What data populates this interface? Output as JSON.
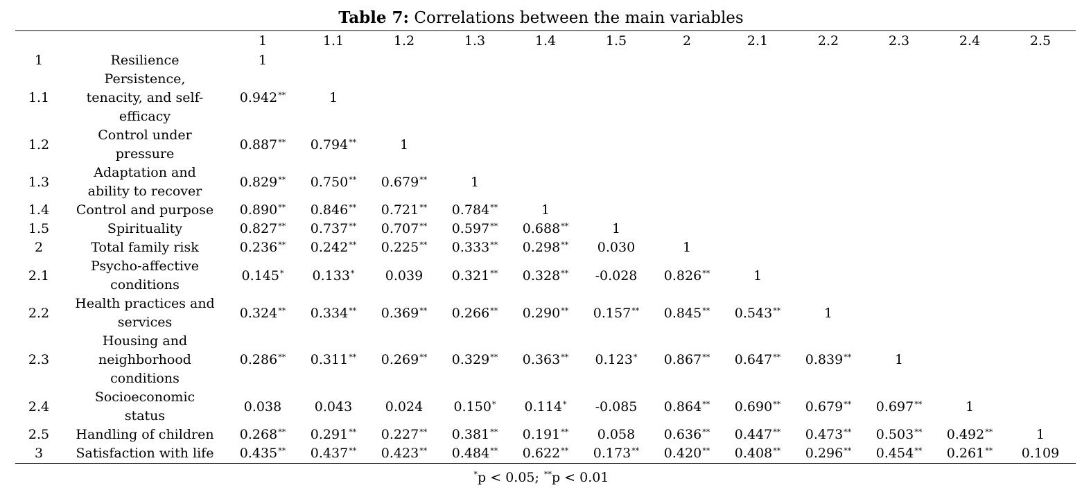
{
  "title": {
    "label": "Table 7:",
    "text": "Correlations between the main variables"
  },
  "columns": [
    "1",
    "1.1",
    "1.2",
    "1.3",
    "1.4",
    "1.5",
    "2",
    "2.1",
    "2.2",
    "2.3",
    "2.4",
    "2.5"
  ],
  "rows": [
    {
      "id": "1",
      "name": [
        "Resilience"
      ],
      "cells": [
        "1"
      ]
    },
    {
      "id": "1.1",
      "name": [
        "Persistence,",
        "tenacity, and self-",
        "efficacy"
      ],
      "cells": [
        "0.942**",
        "1"
      ]
    },
    {
      "id": "1.2",
      "name": [
        "Control under",
        "pressure"
      ],
      "cells": [
        "0.887**",
        "0.794**",
        "1"
      ]
    },
    {
      "id": "1.3",
      "name": [
        "Adaptation and",
        "ability to recover"
      ],
      "cells": [
        "0.829**",
        "0.750**",
        "0.679**",
        "1"
      ]
    },
    {
      "id": "1.4",
      "name": [
        "Control and purpose"
      ],
      "cells": [
        "0.890**",
        "0.846**",
        "0.721**",
        "0.784**",
        "1"
      ]
    },
    {
      "id": "1.5",
      "name": [
        "Spirituality"
      ],
      "cells": [
        "0.827**",
        "0.737**",
        "0.707**",
        "0.597**",
        "0.688**",
        "1"
      ]
    },
    {
      "id": "2",
      "name": [
        "Total family risk"
      ],
      "cells": [
        "0.236**",
        "0.242**",
        "0.225**",
        "0.333**",
        "0.298**",
        "0.030",
        "1"
      ]
    },
    {
      "id": "2.1",
      "name": [
        "Psycho-affective",
        "conditions"
      ],
      "cells": [
        "0.145*",
        "0.133*",
        "0.039",
        "0.321**",
        "0.328**",
        "-0.028",
        "0.826**",
        "1"
      ]
    },
    {
      "id": "2.2",
      "name": [
        "Health practices and",
        "services"
      ],
      "cells": [
        "0.324**",
        "0.334**",
        "0.369**",
        "0.266**",
        "0.290**",
        "0.157**",
        "0.845**",
        "0.543**",
        "1"
      ]
    },
    {
      "id": "2.3",
      "name": [
        "Housing and",
        "neighborhood",
        "conditions"
      ],
      "cells": [
        "0.286**",
        "0.311**",
        "0.269**",
        "0.329**",
        "0.363**",
        "0.123*",
        "0.867**",
        "0.647**",
        "0.839**",
        "1"
      ]
    },
    {
      "id": "2.4",
      "name": [
        "Socioeconomic",
        "status"
      ],
      "cells": [
        "0.038",
        "0.043",
        "0.024",
        "0.150*",
        "0.114*",
        "-0.085",
        "0.864**",
        "0.690**",
        "0.679**",
        "0.697**",
        "1"
      ]
    },
    {
      "id": "2.5",
      "name": [
        "Handling of children"
      ],
      "cells": [
        "0.268**",
        "0.291**",
        "0.227**",
        "0.381**",
        "0.191**",
        "0.058",
        "0.636**",
        "0.447**",
        "0.473**",
        "0.503**",
        "0.492**",
        "1"
      ]
    },
    {
      "id": "3",
      "name": [
        "Satisfaction with life"
      ],
      "cells": [
        "0.435**",
        "0.437**",
        "0.423**",
        "0.484**",
        "0.622**",
        "0.173**",
        "0.420**",
        "0.408**",
        "0.296**",
        "0.454**",
        "0.261**",
        "0.109"
      ]
    }
  ],
  "note": [
    {
      "sup": "*",
      "text": "p < 0.05; "
    },
    {
      "sup": "**",
      "text": "p < 0.01"
    }
  ]
}
